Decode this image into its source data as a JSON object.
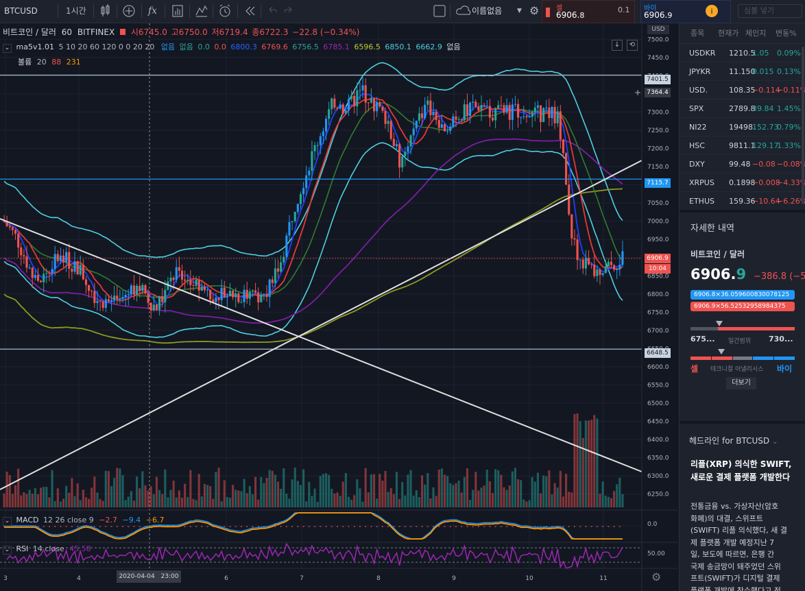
{
  "toolbar": {
    "symbol": "BTCUSD",
    "interval": "1시간",
    "layout": "이름없음",
    "search_placeholder": "심볼 넣기"
  },
  "trade": {
    "sell_label": "셀",
    "sell_price_main": "6906.",
    "sell_price_tail": "8",
    "spread": "0.1",
    "buy_label": "바이",
    "buy_price_main": "6906.",
    "buy_price_tail": "9"
  },
  "legend": {
    "title": "비트코인 / 달러",
    "interval": "60",
    "exchange": "BITFINEX",
    "open": "시6745.0",
    "high": "고6750.0",
    "low": "저6719.4",
    "close": "종6722.3",
    "change": "−22.8 (−0.34%)",
    "ma_name": "ma5v1.01",
    "ma_params": "5 10 20 60 120 0 0 20 20",
    "ma_values": [
      "없음",
      "없음",
      "0.0",
      "0.0",
      "6800.3",
      "6769.6",
      "6756.5",
      "6785.1",
      "6596.5",
      "6850.1",
      "6662.9",
      "없음"
    ],
    "vol_name": "볼륨",
    "vol_param": "20",
    "vol_v1": "88",
    "vol_v2": "231"
  },
  "price_axis": {
    "currency": "USD",
    "ticks": [
      "7500.0",
      "7450.0",
      "7400.0",
      "7350.0",
      "7300.0",
      "7250.0",
      "7200.0",
      "7150.0",
      "7100.0",
      "7050.0",
      "7000.0",
      "6950.0",
      "6900.0",
      "6850.0",
      "6800.0",
      "6750.0",
      "6700.0",
      "6650.0",
      "6600.0",
      "6550.0",
      "6500.0",
      "6450.0",
      "6400.0",
      "6350.0",
      "6300.0",
      "6250.0"
    ],
    "tags": {
      "h1": "7401.5",
      "cross": "7364.4",
      "h2": "7115.7",
      "last": "6906.9",
      "countdown": "10:04",
      "h3": "6648.5"
    }
  },
  "time_axis": {
    "labels": [
      "3",
      "4",
      "6",
      "7",
      "8",
      "9",
      "10",
      "11"
    ],
    "cursor": "2020-04-04",
    "cursor_time": "23:00"
  },
  "macd": {
    "name": "MACD",
    "params": "12 26 close 9",
    "v1": "−2.7",
    "v2": "−9.4",
    "v3": "−6.7",
    "tick": "0.0"
  },
  "rsi": {
    "name": "RSI",
    "params": "14 close",
    "value": "45.58",
    "tick": "50.00"
  },
  "watchlist": {
    "headers": [
      "종목",
      "현재가",
      "체인지",
      "변동%"
    ],
    "rows": [
      {
        "sym": "USDKR",
        "last": "1210.5",
        "chg": "1.05",
        "pct": "0.09%",
        "dir": "up"
      },
      {
        "sym": "JPYKR",
        "last": "11.150",
        "chg": "0.015",
        "pct": "0.13%",
        "dir": "up"
      },
      {
        "sym": "USD.",
        "last": "108.35",
        "chg": "−0.114",
        "pct": "−0.11%",
        "dir": "dn"
      },
      {
        "sym": "SPX",
        "last": "2789.8",
        "chg": "39.84",
        "pct": "1.45%",
        "dir": "up"
      },
      {
        "sym": "NI22",
        "last": "19498.",
        "chg": "152.73",
        "pct": "0.79%",
        "dir": "up"
      },
      {
        "sym": "HSC",
        "last": "9811.1",
        "chg": "129.17",
        "pct": "1.33%",
        "dir": "up"
      },
      {
        "sym": "DXY",
        "last": "99.48",
        "chg": "−0.08",
        "pct": "−0.08%",
        "dir": "dn"
      },
      {
        "sym": "XRPUS",
        "last": "0.1898",
        "chg": "−0.008",
        "pct": "−4.33%",
        "dir": "dn"
      },
      {
        "sym": "ETHUS",
        "last": "159.36",
        "chg": "−10.64",
        "pct": "−6.26%",
        "dir": "dn"
      }
    ]
  },
  "details": {
    "header": "자세한 내역",
    "name": "비트코인 / 달러",
    "price_main": "6906.",
    "price_tail": "9",
    "change": "−386.8 (−5",
    "ask_line": "6906.8×36.059600830078125",
    "bid_line": "6906.9×56.52532958984375",
    "range_low": "675...",
    "range_label": "일간범위",
    "range_high": "730...",
    "range_fraction": 0.11,
    "sell": "셀",
    "ta_label": "테크니컬 어낼리시스",
    "buy": "바이",
    "more_button": "더보기"
  },
  "headlines": {
    "title": "헤드라인 for BTCUSD",
    "headline": "리플(XRP) 의식한 SWIFT, 새로운 결제 플랫폼 개발한다",
    "body": [
      "전통금융 vs. 가상자산(암호",
      "화폐)의 대결, 스위프트",
      "(SWIFT) 리플 의식했다, 새 결",
      "제 플랫폼 개발 예정지난 7",
      "일, 보도에 따르면, 은행 간",
      "국제 송금망이 돼주었던 스위",
      "프트(SWIFT)가 디지털 결제",
      "플랫폼 개발에 착수했다고 전"
    ]
  },
  "chart_data": {
    "type": "candlestick",
    "symbol": "BTCUSD",
    "interval": "60",
    "y_range": [
      6225,
      7525
    ],
    "horizontal_lines": [
      7401.5,
      7115.7,
      6648.5
    ],
    "last_price": 6906.9,
    "x_labels": [
      "3",
      "4",
      "6",
      "7",
      "8",
      "9",
      "10",
      "11"
    ],
    "close_path": [
      [
        0,
        7000
      ],
      [
        0.02,
        6950
      ],
      [
        0.05,
        6820
      ],
      [
        0.08,
        6900
      ],
      [
        0.11,
        6880
      ],
      [
        0.14,
        6790
      ],
      [
        0.17,
        6770
      ],
      [
        0.2,
        6830
      ],
      [
        0.23,
        6760
      ],
      [
        0.26,
        6860
      ],
      [
        0.29,
        6820
      ],
      [
        0.32,
        6800
      ],
      [
        0.35,
        6800
      ],
      [
        0.38,
        6790
      ],
      [
        0.4,
        6820
      ],
      [
        0.42,
        6900
      ],
      [
        0.44,
        7050
      ],
      [
        0.46,
        7150
      ],
      [
        0.48,
        7250
      ],
      [
        0.5,
        7330
      ],
      [
        0.52,
        7310
      ],
      [
        0.54,
        7360
      ],
      [
        0.56,
        7320
      ],
      [
        0.58,
        7280
      ],
      [
        0.6,
        7150
      ],
      [
        0.62,
        7250
      ],
      [
        0.64,
        7320
      ],
      [
        0.66,
        7250
      ],
      [
        0.68,
        7290
      ],
      [
        0.7,
        7300
      ],
      [
        0.72,
        7320
      ],
      [
        0.74,
        7300
      ],
      [
        0.76,
        7300
      ],
      [
        0.78,
        7310
      ],
      [
        0.8,
        7290
      ],
      [
        0.82,
        7300
      ],
      [
        0.84,
        7280
      ],
      [
        0.85,
        7100
      ],
      [
        0.86,
        6950
      ],
      [
        0.87,
        6900
      ],
      [
        0.88,
        6880
      ],
      [
        0.9,
        6850
      ],
      [
        0.92,
        6880
      ],
      [
        0.94,
        6906.9
      ]
    ]
  }
}
